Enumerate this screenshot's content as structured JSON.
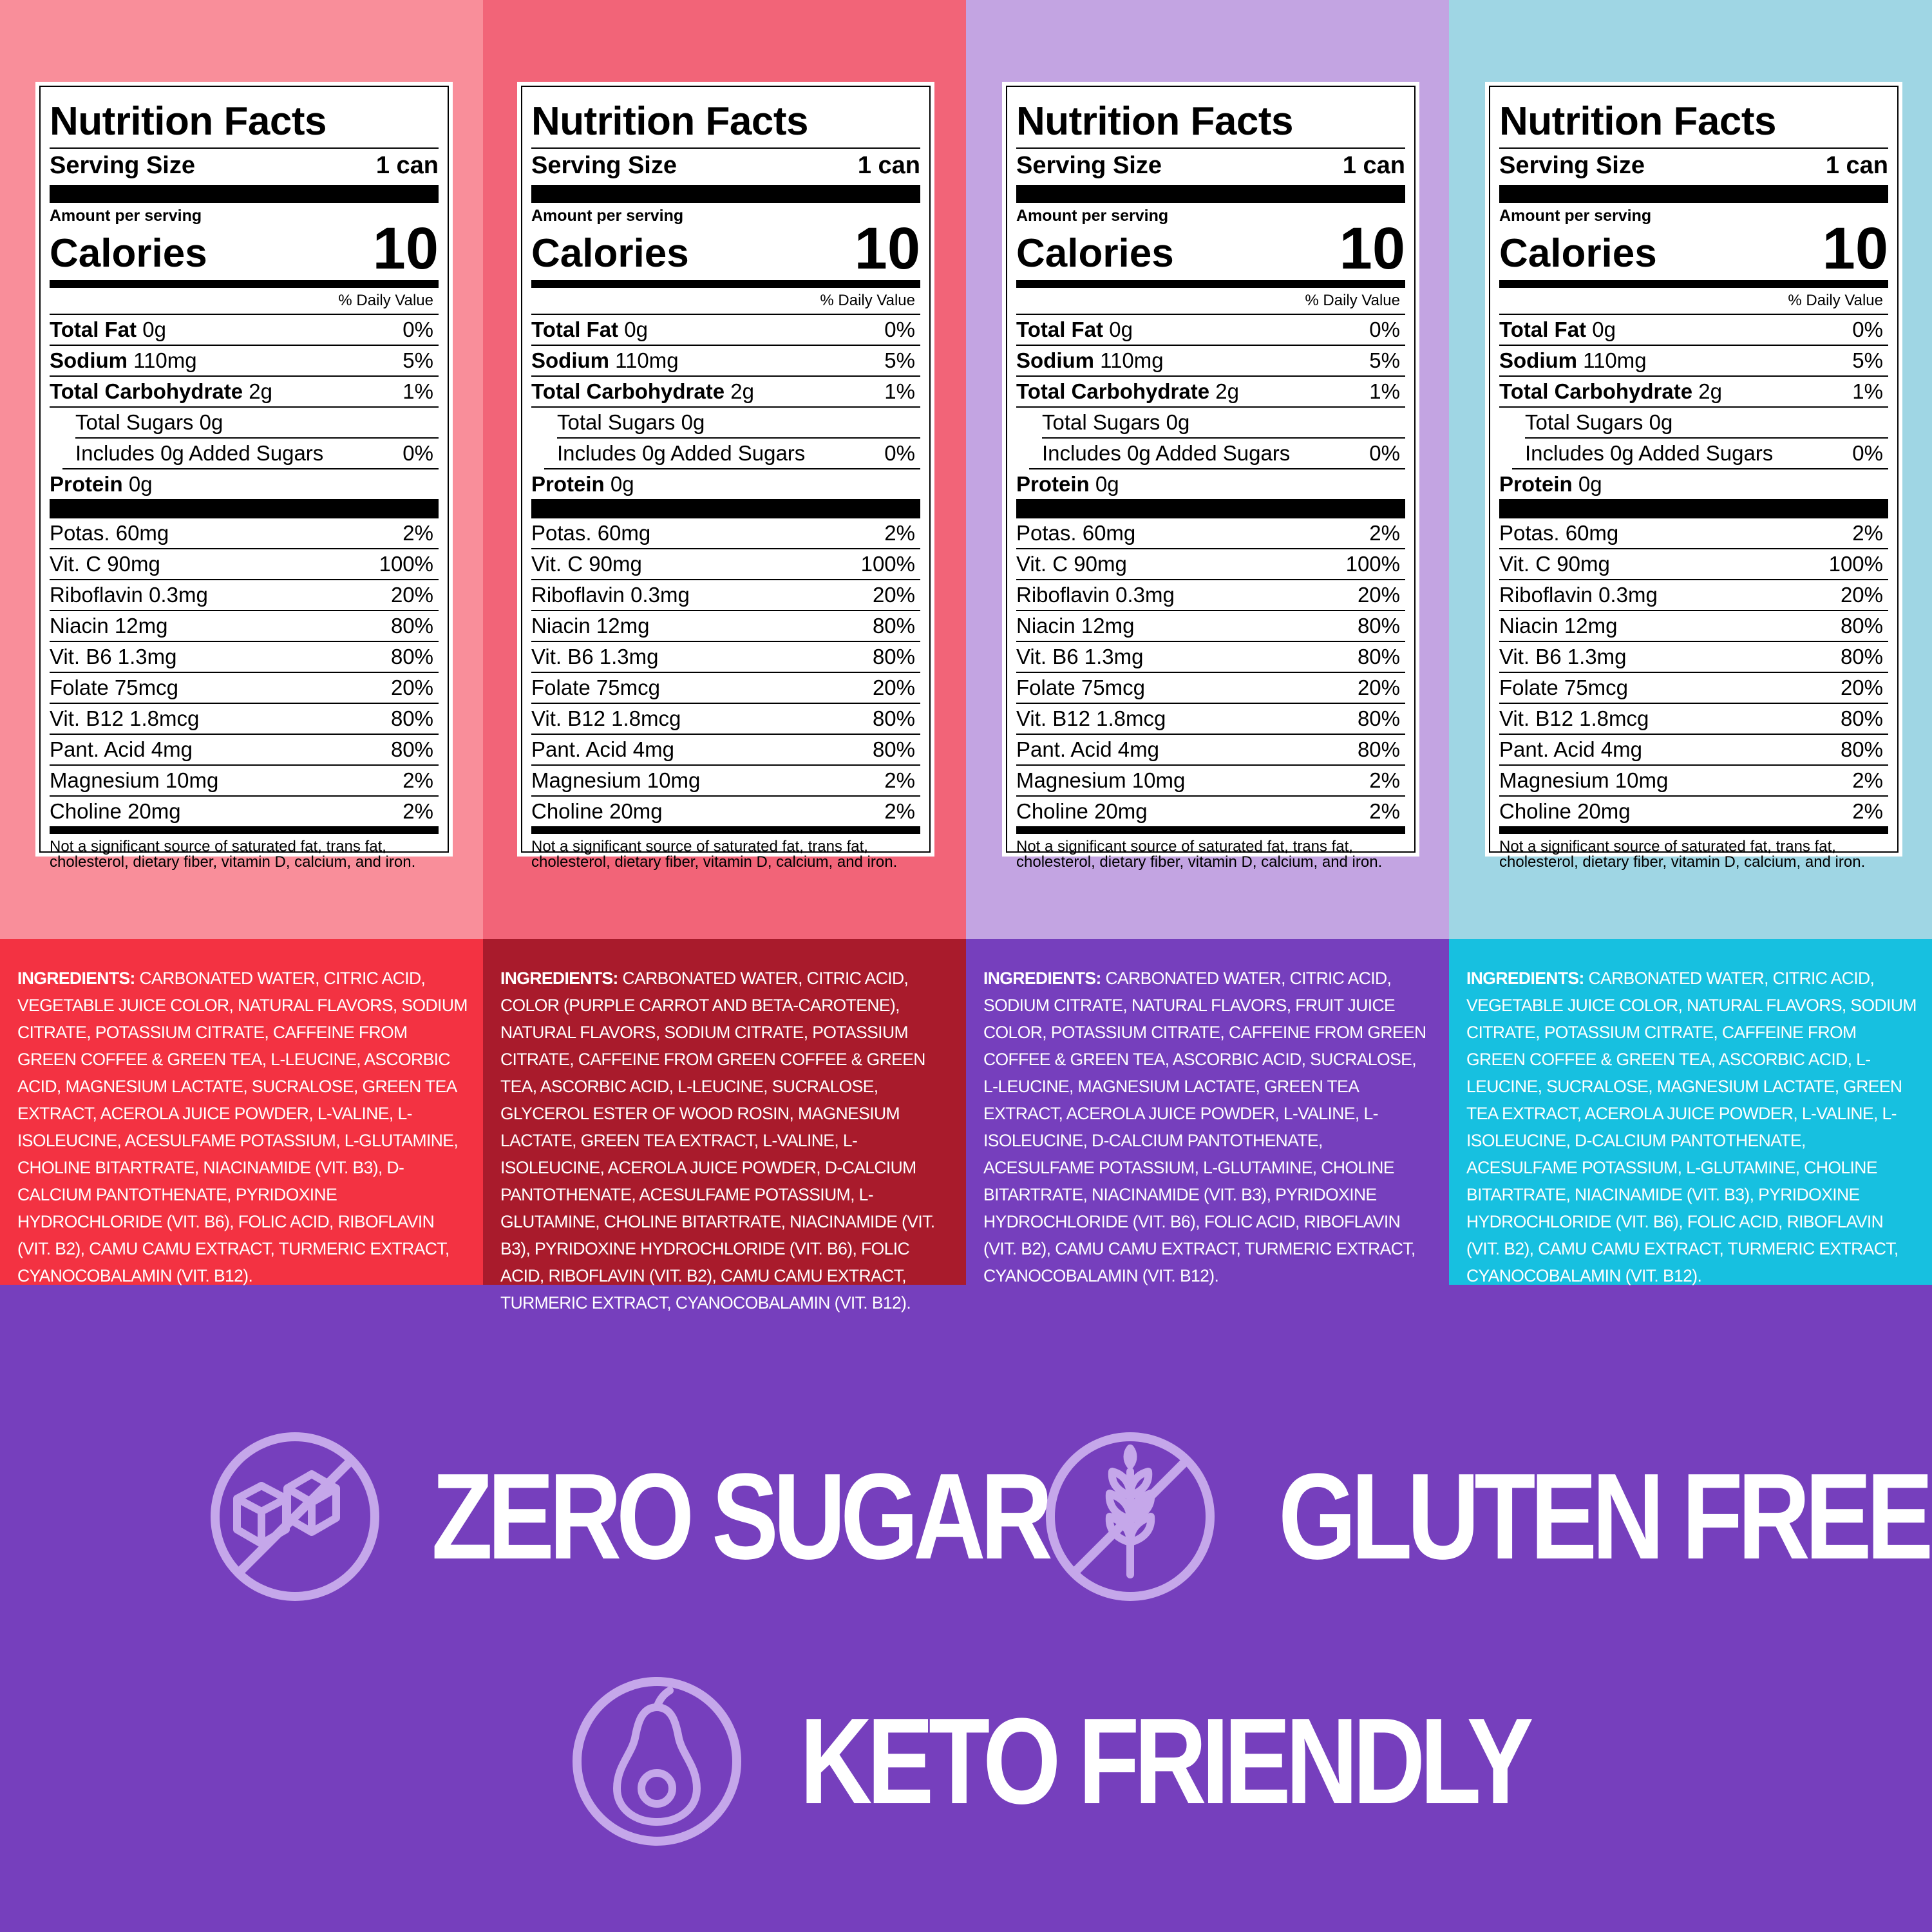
{
  "colors": {
    "panel_bg": [
      "#f98e9a",
      "#f26478",
      "#c3a4e2",
      "#9fd6e4"
    ],
    "ingredients_bg": [
      "#f33242",
      "#a91b2c",
      "#763fbd",
      "#17c0e0"
    ],
    "claims_bg": "#763fbd",
    "claim_icon": "#c5a7ea"
  },
  "panels": [
    {
      "title": "Nutrition Facts",
      "serving_label": "Serving Size",
      "serving_value": "1 can",
      "amount_label": "Amount per serving",
      "calories_label": "Calories",
      "calories_value": "10",
      "dv_header": "% Daily Value",
      "fat_label": "Total Fat",
      "fat_amt": "0g",
      "fat_dv": "0%",
      "sodium_label": "Sodium",
      "sodium_amt": "110mg",
      "sodium_dv": "5%",
      "carb_label": "Total Carbohydrate",
      "carb_amt": "2g",
      "carb_dv": "1%",
      "sugars": "Total Sugars 0g",
      "added_sugars": "Includes 0g Added Sugars",
      "added_dv": "0%",
      "protein_label": "Protein",
      "protein_amt": "0g",
      "vitamins": [
        {
          "name": "Potas. 60mg",
          "dv": "2%"
        },
        {
          "name": "Vit. C 90mg",
          "dv": "100%"
        },
        {
          "name": "Riboflavin 0.3mg",
          "dv": "20%"
        },
        {
          "name": "Niacin 12mg",
          "dv": "80%"
        },
        {
          "name": "Vit. B6 1.3mg",
          "dv": "80%"
        },
        {
          "name": "Folate 75mcg",
          "dv": "20%"
        },
        {
          "name": "Vit. B12 1.8mcg",
          "dv": "80%"
        },
        {
          "name": "Pant. Acid 4mg",
          "dv": "80%"
        },
        {
          "name": "Magnesium 10mg",
          "dv": "2%"
        },
        {
          "name": "Choline 20mg",
          "dv": "2%"
        }
      ],
      "footnote": "Not a significant source of saturated fat, trans fat, cholesterol, dietary fiber, vitamin D, calcium, and iron.",
      "ingredients_label": "INGREDIENTS:",
      "ingredients": "CARBONATED WATER, CITRIC ACID, VEGETABLE JUICE COLOR, NATURAL FLAVORS, SODIUM CITRATE, POTASSIUM CITRATE, CAFFEINE FROM GREEN COFFEE & GREEN TEA, L-LEUCINE, ASCORBIC ACID, MAGNESIUM LACTATE, SUCRALOSE, GREEN TEA EXTRACT, ACEROLA JUICE POWDER, L-VALINE, L-ISOLEUCINE, ACESULFAME POTASSIUM, L-GLUTAMINE, CHOLINE BITARTRATE, NIACINAMIDE (VIT. B3), D-CALCIUM PANTOTHENATE, PYRIDOXINE HYDROCHLORIDE (VIT. B6), FOLIC ACID, RIBOFLAVIN (VIT. B2), CAMU CAMU EXTRACT, TURMERIC EXTRACT, CYANOCOBALAMIN (VIT. B12)."
    },
    {
      "title": "Nutrition Facts",
      "serving_label": "Serving Size",
      "serving_value": "1 can",
      "amount_label": "Amount per serving",
      "calories_label": "Calories",
      "calories_value": "10",
      "dv_header": "% Daily Value",
      "fat_label": "Total Fat",
      "fat_amt": "0g",
      "fat_dv": "0%",
      "sodium_label": "Sodium",
      "sodium_amt": "110mg",
      "sodium_dv": "5%",
      "carb_label": "Total Carbohydrate",
      "carb_amt": "2g",
      "carb_dv": "1%",
      "sugars": "Total Sugars 0g",
      "added_sugars": "Includes 0g Added Sugars",
      "added_dv": "0%",
      "protein_label": "Protein",
      "protein_amt": "0g",
      "vitamins": [
        {
          "name": "Potas. 60mg",
          "dv": "2%"
        },
        {
          "name": "Vit. C 90mg",
          "dv": "100%"
        },
        {
          "name": "Riboflavin 0.3mg",
          "dv": "20%"
        },
        {
          "name": "Niacin 12mg",
          "dv": "80%"
        },
        {
          "name": "Vit. B6 1.3mg",
          "dv": "80%"
        },
        {
          "name": "Folate 75mcg",
          "dv": "20%"
        },
        {
          "name": "Vit. B12 1.8mcg",
          "dv": "80%"
        },
        {
          "name": "Pant. Acid 4mg",
          "dv": "80%"
        },
        {
          "name": "Magnesium 10mg",
          "dv": "2%"
        },
        {
          "name": "Choline 20mg",
          "dv": "2%"
        }
      ],
      "footnote": "Not a significant source of saturated fat, trans fat, cholesterol, dietary fiber, vitamin D, calcium, and iron.",
      "ingredients_label": "INGREDIENTS:",
      "ingredients": "CARBONATED WATER, CITRIC ACID, COLOR (PURPLE CARROT AND BETA-CAROTENE), NATURAL FLAVORS, SODIUM CITRATE, POTASSIUM CITRATE, CAFFEINE FROM GREEN COFFEE & GREEN TEA, ASCORBIC ACID, L-LEUCINE, SUCRALOSE, GLYCEROL ESTER OF WOOD ROSIN, MAGNESIUM LACTATE, GREEN TEA EXTRACT, L-VALINE, L-ISOLEUCINE, ACEROLA JUICE POWDER, D-CALCIUM PANTOTHENATE, ACESULFAME POTASSIUM, L-GLUTAMINE, CHOLINE BITARTRATE, NIACINAMIDE (VIT. B3), PYRIDOXINE HYDROCHLORIDE (VIT. B6), FOLIC ACID, RIBOFLAVIN (VIT. B2), CAMU CAMU EXTRACT, TURMERIC EXTRACT, CYANOCOBALAMIN (VIT. B12)."
    },
    {
      "title": "Nutrition Facts",
      "serving_label": "Serving Size",
      "serving_value": "1 can",
      "amount_label": "Amount per serving",
      "calories_label": "Calories",
      "calories_value": "10",
      "dv_header": "% Daily Value",
      "fat_label": "Total Fat",
      "fat_amt": "0g",
      "fat_dv": "0%",
      "sodium_label": "Sodium",
      "sodium_amt": "110mg",
      "sodium_dv": "5%",
      "carb_label": "Total Carbohydrate",
      "carb_amt": "2g",
      "carb_dv": "1%",
      "sugars": "Total Sugars 0g",
      "added_sugars": "Includes 0g Added Sugars",
      "added_dv": "0%",
      "protein_label": "Protein",
      "protein_amt": "0g",
      "vitamins": [
        {
          "name": "Potas. 60mg",
          "dv": "2%"
        },
        {
          "name": "Vit. C 90mg",
          "dv": "100%"
        },
        {
          "name": "Riboflavin 0.3mg",
          "dv": "20%"
        },
        {
          "name": "Niacin 12mg",
          "dv": "80%"
        },
        {
          "name": "Vit. B6 1.3mg",
          "dv": "80%"
        },
        {
          "name": "Folate 75mcg",
          "dv": "20%"
        },
        {
          "name": "Vit. B12 1.8mcg",
          "dv": "80%"
        },
        {
          "name": "Pant. Acid 4mg",
          "dv": "80%"
        },
        {
          "name": "Magnesium 10mg",
          "dv": "2%"
        },
        {
          "name": "Choline 20mg",
          "dv": "2%"
        }
      ],
      "footnote": "Not a significant source of saturated fat, trans fat, cholesterol, dietary fiber, vitamin D, calcium, and iron.",
      "ingredients_label": "INGREDIENTS:",
      "ingredients": "CARBONATED WATER, CITRIC ACID, SODIUM CITRATE, NATURAL FLAVORS, FRUIT JUICE COLOR, POTASSIUM CITRATE, CAFFEINE FROM GREEN COFFEE & GREEN TEA, ASCORBIC ACID, SUCRALOSE, L-LEUCINE, MAGNESIUM LACTATE, GREEN TEA EXTRACT, ACEROLA JUICE POWDER, L-VALINE, L-ISOLEUCINE, D-CALCIUM PANTOTHENATE, ACESULFAME POTASSIUM, L-GLUTAMINE, CHOLINE BITARTRATE, NIACINAMIDE (VIT. B3), PYRIDOXINE HYDROCHLORIDE (VIT. B6), FOLIC ACID, RIBOFLAVIN (VIT. B2), CAMU CAMU EXTRACT, TURMERIC EXTRACT, CYANOCOBALAMIN (VIT. B12)."
    },
    {
      "title": "Nutrition Facts",
      "serving_label": "Serving Size",
      "serving_value": "1 can",
      "amount_label": "Amount per serving",
      "calories_label": "Calories",
      "calories_value": "10",
      "dv_header": "% Daily Value",
      "fat_label": "Total Fat",
      "fat_amt": "0g",
      "fat_dv": "0%",
      "sodium_label": "Sodium",
      "sodium_amt": "110mg",
      "sodium_dv": "5%",
      "carb_label": "Total Carbohydrate",
      "carb_amt": "2g",
      "carb_dv": "1%",
      "sugars": "Total Sugars 0g",
      "added_sugars": "Includes 0g Added Sugars",
      "added_dv": "0%",
      "protein_label": "Protein",
      "protein_amt": "0g",
      "vitamins": [
        {
          "name": "Potas. 60mg",
          "dv": "2%"
        },
        {
          "name": "Vit. C 90mg",
          "dv": "100%"
        },
        {
          "name": "Riboflavin 0.3mg",
          "dv": "20%"
        },
        {
          "name": "Niacin 12mg",
          "dv": "80%"
        },
        {
          "name": "Vit. B6 1.3mg",
          "dv": "80%"
        },
        {
          "name": "Folate 75mcg",
          "dv": "20%"
        },
        {
          "name": "Vit. B12 1.8mcg",
          "dv": "80%"
        },
        {
          "name": "Pant. Acid 4mg",
          "dv": "80%"
        },
        {
          "name": "Magnesium 10mg",
          "dv": "2%"
        },
        {
          "name": "Choline 20mg",
          "dv": "2%"
        }
      ],
      "footnote": "Not a significant source of saturated fat, trans fat, cholesterol, dietary fiber, vitamin D, calcium, and iron.",
      "ingredients_label": "INGREDIENTS:",
      "ingredients": "CARBONATED WATER, CITRIC ACID, VEGETABLE JUICE COLOR, NATURAL FLAVORS, SODIUM CITRATE, POTASSIUM CITRATE, CAFFEINE FROM GREEN COFFEE & GREEN TEA, ASCORBIC ACID, L-LEUCINE, SUCRALOSE, MAGNESIUM LACTATE, GREEN TEA EXTRACT, ACEROLA JUICE POWDER, L-VALINE, L-ISOLEUCINE, D-CALCIUM PANTOTHENATE, ACESULFAME POTASSIUM, L-GLUTAMINE, CHOLINE BITARTRATE, NIACINAMIDE (VIT. B3), PYRIDOXINE HYDROCHLORIDE (VIT. B6), FOLIC ACID, RIBOFLAVIN (VIT. B2), CAMU CAMU EXTRACT, TURMERIC EXTRACT, CYANOCOBALAMIN (VIT. B12)."
    }
  ],
  "claims": [
    {
      "text": "ZERO SUGAR",
      "icon": "no-sugar-cubes-icon"
    },
    {
      "text": "GLUTEN FREE",
      "icon": "no-wheat-icon"
    },
    {
      "text": "KETO FRIENDLY",
      "icon": "avocado-icon"
    }
  ]
}
